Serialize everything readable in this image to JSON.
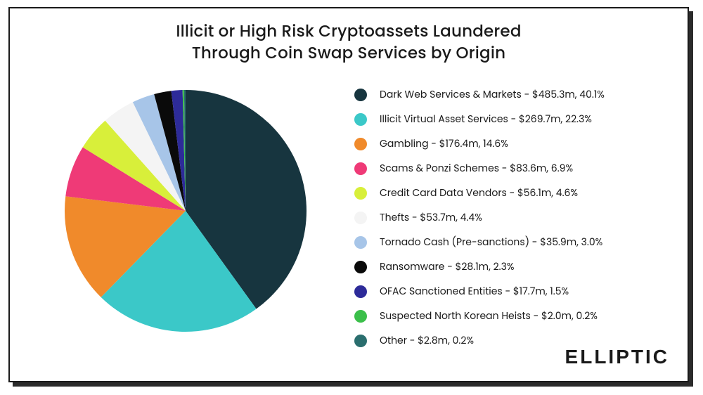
{
  "title_line1": "Illicit or High Risk Cryptoassets Laundered",
  "title_line2": "Through Coin Swap Services by Origin",
  "brand": "ELLIPTIC",
  "chart": {
    "type": "pie",
    "background_color": "#ffffff",
    "radius": 172,
    "start_angle_deg": 0,
    "slices": [
      {
        "label": "Dark Web Services & Markets",
        "amount_str": "$485.3m",
        "pct_str": "40.1%",
        "pct": 40.1,
        "color": "#17353f"
      },
      {
        "label": "Illicit Virtual Asset Services",
        "amount_str": "$269.7m",
        "pct_str": "22.3%",
        "pct": 22.3,
        "color": "#3bc8c8"
      },
      {
        "label": "Gambling",
        "amount_str": "$176.4m",
        "pct_str": "14.6%",
        "pct": 14.6,
        "color": "#f08a2b"
      },
      {
        "label": "Scams & Ponzi Schemes",
        "amount_str": "$83.6m",
        "pct_str": "6.9%",
        "pct": 6.9,
        "color": "#ef3a77"
      },
      {
        "label": "Credit Card Data Vendors",
        "amount_str": "$56.1m",
        "pct_str": "4.6%",
        "pct": 4.6,
        "color": "#d8ef3a"
      },
      {
        "label": "Thefts",
        "amount_str": "$53.7m",
        "pct_str": "4.4%",
        "pct": 4.4,
        "color": "#f4f4f4"
      },
      {
        "label": "Tornado Cash (Pre-sanctions)",
        "amount_str": "$35.9m",
        "pct_str": "3.0%",
        "pct": 3.0,
        "color": "#a7c5e8"
      },
      {
        "label": "Ransomware",
        "amount_str": "$28.1m",
        "pct_str": "2.3%",
        "pct": 2.3,
        "color": "#0a0a0a"
      },
      {
        "label": "OFAC Sanctioned Entities",
        "amount_str": "$17.7m",
        "pct_str": "1.5%",
        "pct": 1.5,
        "color": "#2d2b99"
      },
      {
        "label": "Suspected North Korean Heists",
        "amount_str": "$2.0m",
        "pct_str": "0.2%",
        "pct": 0.2,
        "color": "#3bbf4a"
      },
      {
        "label": "Other",
        "amount_str": "$2.8m",
        "pct_str": "0.2%",
        "pct": 0.2,
        "color": "#2a6e6e"
      }
    ]
  },
  "legend_label_fontsize": 14,
  "title_fontsize": 23,
  "brand_fontsize": 28
}
